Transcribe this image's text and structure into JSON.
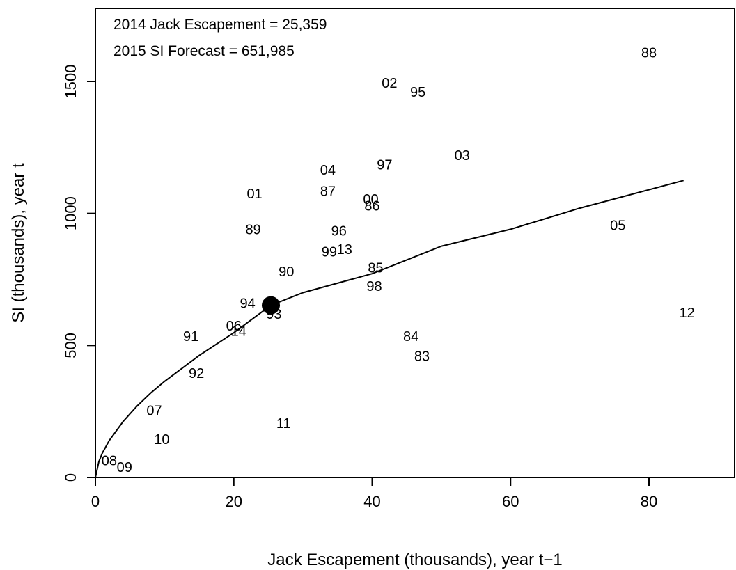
{
  "chart_data": {
    "type": "scatter",
    "xlabel": "Jack Escapement (thousands), year t−1",
    "ylabel": "SI (thousands), year t",
    "xlim": [
      0,
      92.5
    ],
    "ylim": [
      0,
      1770
    ],
    "x_ticks": [
      0,
      20,
      40,
      60,
      80
    ],
    "y_ticks": [
      0,
      500,
      1000,
      1500
    ],
    "annotations": [
      "2014 Jack Escapement = 25,359",
      "2015 SI Forecast = 651,985"
    ],
    "highlight_point": {
      "x": 25.359,
      "y": 651.985
    },
    "fit_curve": {
      "model": "power",
      "points": [
        {
          "x": 0,
          "y": 0
        },
        {
          "x": 0.5,
          "y": 60
        },
        {
          "x": 1,
          "y": 92
        },
        {
          "x": 2,
          "y": 140
        },
        {
          "x": 4,
          "y": 212
        },
        {
          "x": 6,
          "y": 270
        },
        {
          "x": 8,
          "y": 320
        },
        {
          "x": 10,
          "y": 364
        },
        {
          "x": 15,
          "y": 462
        },
        {
          "x": 20,
          "y": 548
        },
        {
          "x": 25.359,
          "y": 651.985
        },
        {
          "x": 30,
          "y": 700
        },
        {
          "x": 40,
          "y": 772
        },
        {
          "x": 50,
          "y": 876
        },
        {
          "x": 60,
          "y": 940
        },
        {
          "x": 70,
          "y": 1020
        },
        {
          "x": 85,
          "y": 1125
        }
      ]
    },
    "points": [
      {
        "label": "88",
        "x": 80.0,
        "y": 1610
      },
      {
        "label": "02",
        "x": 42.5,
        "y": 1495
      },
      {
        "label": "95",
        "x": 46.6,
        "y": 1460
      },
      {
        "label": "03",
        "x": 53.0,
        "y": 1220
      },
      {
        "label": "97",
        "x": 41.8,
        "y": 1185
      },
      {
        "label": "04",
        "x": 33.6,
        "y": 1165
      },
      {
        "label": "87",
        "x": 33.6,
        "y": 1085
      },
      {
        "label": "01",
        "x": 23.0,
        "y": 1075
      },
      {
        "label": "00",
        "x": 39.8,
        "y": 1055
      },
      {
        "label": "86",
        "x": 40.0,
        "y": 1030
      },
      {
        "label": "05",
        "x": 75.5,
        "y": 955
      },
      {
        "label": "89",
        "x": 22.8,
        "y": 940
      },
      {
        "label": "96",
        "x": 35.2,
        "y": 935
      },
      {
        "label": "13",
        "x": 36.0,
        "y": 865
      },
      {
        "label": "99",
        "x": 33.8,
        "y": 855
      },
      {
        "label": "90",
        "x": 27.6,
        "y": 780
      },
      {
        "label": "85",
        "x": 40.5,
        "y": 795
      },
      {
        "label": "98",
        "x": 40.3,
        "y": 725
      },
      {
        "label": "94",
        "x": 22.0,
        "y": 660
      },
      {
        "label": "93",
        "x": 25.8,
        "y": 620
      },
      {
        "label": "12",
        "x": 85.5,
        "y": 625
      },
      {
        "label": "06",
        "x": 20.0,
        "y": 575
      },
      {
        "label": "14",
        "x": 20.7,
        "y": 555
      },
      {
        "label": "84",
        "x": 45.6,
        "y": 535
      },
      {
        "label": "91",
        "x": 13.8,
        "y": 535
      },
      {
        "label": "83",
        "x": 47.2,
        "y": 460
      },
      {
        "label": "92",
        "x": 14.6,
        "y": 395
      },
      {
        "label": "07",
        "x": 8.5,
        "y": 255
      },
      {
        "label": "11",
        "x": 27.2,
        "y": 205
      },
      {
        "label": "10",
        "x": 9.6,
        "y": 145
      },
      {
        "label": "08",
        "x": 2.0,
        "y": 65
      },
      {
        "label": "09",
        "x": 4.2,
        "y": 40
      }
    ]
  }
}
